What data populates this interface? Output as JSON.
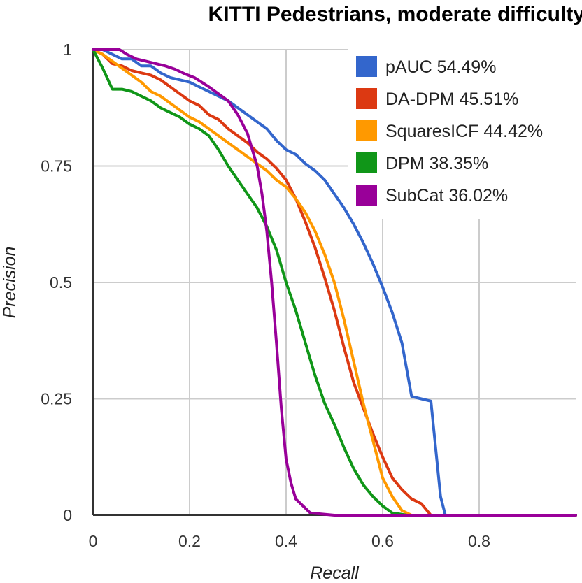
{
  "chart_data": {
    "type": "line",
    "title": "KITTI Pedestrians, moderate difficulty",
    "xlabel": "Recall",
    "ylabel": "Precision",
    "xlim": [
      0,
      1
    ],
    "ylim": [
      0,
      1
    ],
    "xticks": [
      0,
      0.2,
      0.4,
      0.6,
      0.8
    ],
    "xtick_labels": [
      "0",
      "0.2",
      "0.4",
      "0.6",
      "0.8"
    ],
    "yticks": [
      0,
      0.25,
      0.5,
      0.75,
      1
    ],
    "ytick_labels": [
      "0",
      "0.25",
      "0.5",
      "0.75",
      "1"
    ],
    "grid": true,
    "legend_position": "top-right",
    "series": [
      {
        "name": "pAUC 54.49%",
        "color": "#3366cc",
        "x": [
          0,
          0.02,
          0.04,
          0.06,
          0.08,
          0.1,
          0.12,
          0.14,
          0.16,
          0.18,
          0.2,
          0.22,
          0.24,
          0.26,
          0.28,
          0.3,
          0.32,
          0.34,
          0.36,
          0.38,
          0.4,
          0.42,
          0.44,
          0.46,
          0.48,
          0.5,
          0.52,
          0.54,
          0.56,
          0.58,
          0.6,
          0.62,
          0.64,
          0.66,
          0.68,
          0.7,
          0.72,
          0.73,
          1.0
        ],
        "y": [
          1,
          1,
          0.99,
          0.98,
          0.98,
          0.965,
          0.965,
          0.95,
          0.94,
          0.935,
          0.93,
          0.92,
          0.91,
          0.9,
          0.89,
          0.875,
          0.86,
          0.845,
          0.83,
          0.805,
          0.785,
          0.775,
          0.755,
          0.74,
          0.72,
          0.69,
          0.66,
          0.625,
          0.585,
          0.54,
          0.49,
          0.435,
          0.37,
          0.255,
          0.25,
          0.245,
          0.04,
          0,
          0
        ]
      },
      {
        "name": "DA-DPM 45.51%",
        "color": "#dc3912",
        "x": [
          0,
          0.02,
          0.04,
          0.06,
          0.08,
          0.1,
          0.12,
          0.14,
          0.16,
          0.18,
          0.2,
          0.22,
          0.24,
          0.26,
          0.28,
          0.3,
          0.32,
          0.34,
          0.36,
          0.38,
          0.4,
          0.42,
          0.44,
          0.46,
          0.48,
          0.5,
          0.52,
          0.54,
          0.56,
          0.58,
          0.6,
          0.62,
          0.64,
          0.66,
          0.68,
          0.7,
          1.0
        ],
        "y": [
          1,
          0.99,
          0.97,
          0.965,
          0.955,
          0.95,
          0.945,
          0.935,
          0.92,
          0.905,
          0.89,
          0.88,
          0.86,
          0.85,
          0.83,
          0.815,
          0.8,
          0.78,
          0.765,
          0.745,
          0.72,
          0.68,
          0.63,
          0.575,
          0.51,
          0.44,
          0.36,
          0.285,
          0.23,
          0.175,
          0.125,
          0.08,
          0.055,
          0.035,
          0.025,
          0,
          0
        ]
      },
      {
        "name": "SquaresICF 44.42%",
        "color": "#ff9900",
        "x": [
          0,
          0.02,
          0.04,
          0.06,
          0.08,
          0.1,
          0.12,
          0.14,
          0.16,
          0.18,
          0.2,
          0.22,
          0.24,
          0.26,
          0.28,
          0.3,
          0.32,
          0.34,
          0.36,
          0.38,
          0.4,
          0.42,
          0.44,
          0.46,
          0.48,
          0.5,
          0.52,
          0.54,
          0.56,
          0.58,
          0.6,
          0.62,
          0.64,
          0.66,
          1.0
        ],
        "y": [
          1,
          0.99,
          0.975,
          0.96,
          0.945,
          0.93,
          0.91,
          0.9,
          0.885,
          0.87,
          0.855,
          0.845,
          0.83,
          0.815,
          0.8,
          0.785,
          0.77,
          0.755,
          0.74,
          0.72,
          0.705,
          0.68,
          0.65,
          0.61,
          0.56,
          0.5,
          0.42,
          0.33,
          0.24,
          0.16,
          0.08,
          0.04,
          0.01,
          0,
          0
        ]
      },
      {
        "name": "DPM 38.35%",
        "color": "#109618",
        "x": [
          0,
          0.02,
          0.04,
          0.06,
          0.08,
          0.1,
          0.12,
          0.14,
          0.16,
          0.18,
          0.2,
          0.22,
          0.24,
          0.26,
          0.28,
          0.3,
          0.32,
          0.34,
          0.36,
          0.38,
          0.4,
          0.42,
          0.44,
          0.46,
          0.48,
          0.5,
          0.52,
          0.54,
          0.56,
          0.58,
          0.6,
          0.62,
          0.64,
          0.65,
          1.0
        ],
        "y": [
          1,
          0.96,
          0.915,
          0.915,
          0.91,
          0.9,
          0.89,
          0.875,
          0.865,
          0.855,
          0.84,
          0.83,
          0.815,
          0.785,
          0.75,
          0.72,
          0.69,
          0.66,
          0.62,
          0.57,
          0.5,
          0.44,
          0.37,
          0.3,
          0.24,
          0.195,
          0.145,
          0.1,
          0.065,
          0.04,
          0.02,
          0.005,
          0.002,
          0,
          0
        ]
      },
      {
        "name": "SubCat 36.02%",
        "color": "#990099",
        "x": [
          0,
          0.02,
          0.04,
          0.055,
          0.07,
          0.09,
          0.11,
          0.13,
          0.15,
          0.17,
          0.19,
          0.21,
          0.225,
          0.24,
          0.26,
          0.28,
          0.3,
          0.32,
          0.34,
          0.35,
          0.36,
          0.37,
          0.38,
          0.39,
          0.4,
          0.41,
          0.42,
          0.44,
          0.45,
          0.5,
          0.6,
          1.0
        ],
        "y": [
          1,
          1,
          1,
          1,
          0.99,
          0.98,
          0.975,
          0.97,
          0.965,
          0.958,
          0.948,
          0.94,
          0.93,
          0.92,
          0.905,
          0.89,
          0.86,
          0.82,
          0.75,
          0.69,
          0.61,
          0.5,
          0.37,
          0.23,
          0.12,
          0.07,
          0.035,
          0.015,
          0.005,
          0,
          0,
          0
        ]
      }
    ]
  }
}
